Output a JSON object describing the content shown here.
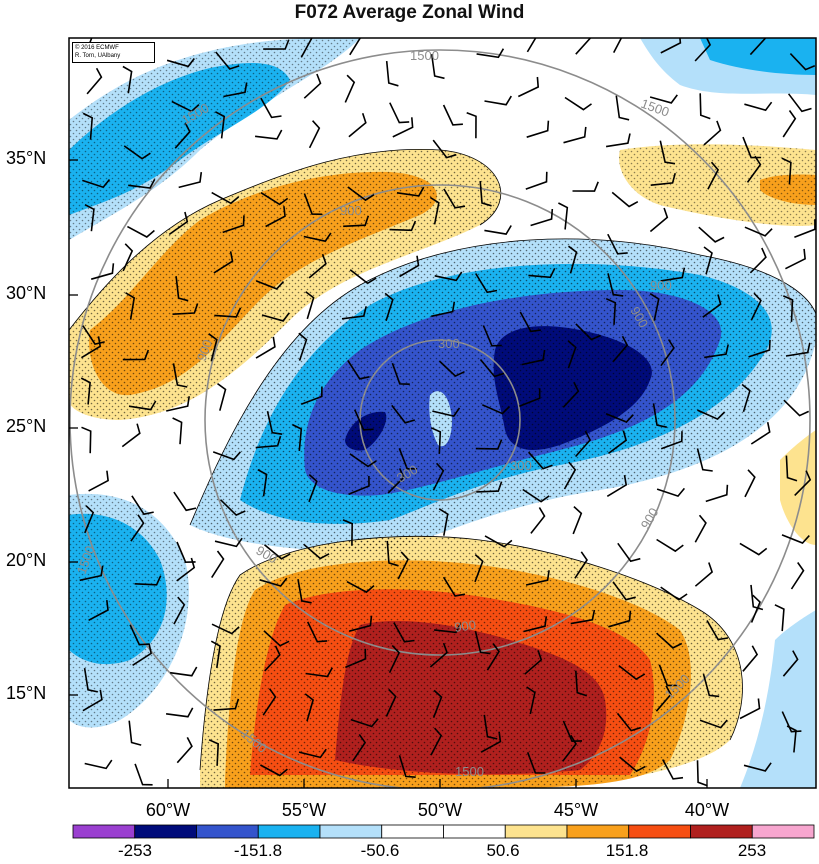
{
  "title": "F072 Average Zonal Wind",
  "copyright": {
    "line1": "© 2016 ECMWF",
    "line2": "R. Torn, UAlbany"
  },
  "lat_labels": [
    "35°N",
    "30°N",
    "25°N",
    "20°N",
    "15°N"
  ],
  "lon_labels": [
    "60°W",
    "55°W",
    "50°W",
    "45°W",
    "40°W"
  ],
  "colorbar": {
    "labels": [
      "-253",
      "-151.8",
      "-50.6",
      "50.6",
      "151.8",
      "253"
    ],
    "colors": [
      "#9a3fd0",
      "#000b7a",
      "#3454cc",
      "#1ab2f0",
      "#b4e0fa",
      "#ffffff",
      "#ffffff",
      "#fde38f",
      "#f8a01c",
      "#f64e12",
      "#b0201e",
      "#f7a6cf"
    ]
  },
  "contour_labels": [
    "1500",
    "1500",
    "1500",
    "900",
    "900",
    "900",
    "900",
    "900",
    "300",
    "300",
    "300",
    "900",
    "1500",
    "1500",
    "1500",
    "1500",
    "900"
  ],
  "map_colors": {
    "deep_blue": "#000b7a",
    "mid_blue": "#3454cc",
    "blue": "#1ab2f0",
    "light_blue": "#b4e0fa",
    "yellow": "#fde38f",
    "orange": "#f8a01c",
    "red_orange": "#f64e12",
    "dark_red": "#b0201e"
  }
}
